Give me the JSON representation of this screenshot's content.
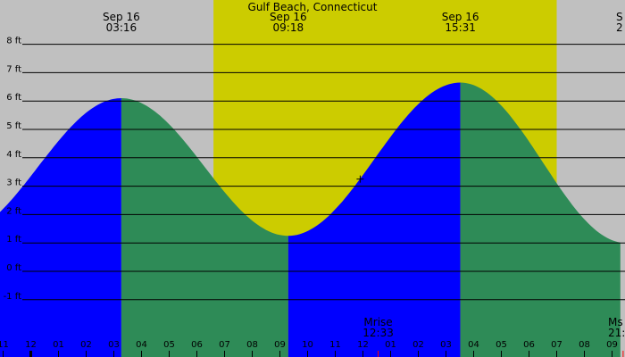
{
  "chart_data": {
    "type": "area",
    "title": "Gulf Beach, Connecticut",
    "y_unit": "ft",
    "ylim": [
      -1.5,
      8.5
    ],
    "y_ticks": [
      8,
      7,
      6,
      5,
      4,
      3,
      2,
      1,
      0,
      -1
    ],
    "y_tick_labels": [
      "8 ft",
      "7 ft",
      "6 ft",
      "5 ft",
      "4 ft",
      "3 ft",
      "2 ft",
      "1 ft",
      "0 ft",
      "-1 ft"
    ],
    "x_unit": "hour of day (Sep 16)",
    "xlim": [
      -1.3,
      21.3
    ],
    "hour_tick_labels": [
      {
        "hour": -1,
        "label": "11"
      },
      {
        "hour": 0,
        "label": "12"
      },
      {
        "hour": 1,
        "label": "01"
      },
      {
        "hour": 2,
        "label": "02"
      },
      {
        "hour": 3,
        "label": "03"
      },
      {
        "hour": 4,
        "label": "04"
      },
      {
        "hour": 5,
        "label": "05"
      },
      {
        "hour": 6,
        "label": "06"
      },
      {
        "hour": 7,
        "label": "07"
      },
      {
        "hour": 8,
        "label": "08"
      },
      {
        "hour": 9,
        "label": "09"
      },
      {
        "hour": 10,
        "label": "10"
      },
      {
        "hour": 11,
        "label": "11"
      },
      {
        "hour": 12,
        "label": "12"
      },
      {
        "hour": 13,
        "label": "01"
      },
      {
        "hour": 14,
        "label": "02"
      },
      {
        "hour": 15,
        "label": "03"
      },
      {
        "hour": 16,
        "label": "04"
      },
      {
        "hour": 17,
        "label": "05"
      },
      {
        "hour": 18,
        "label": "06"
      },
      {
        "hour": 19,
        "label": "07"
      },
      {
        "hour": 20,
        "label": "08"
      },
      {
        "hour": 21,
        "label": "09"
      }
    ],
    "daylight": {
      "start_hour": 6.6,
      "end_hour": 19.0
    },
    "tide_extremes": [
      {
        "date": "Sep 16",
        "time": "03:16",
        "hour": 3.27,
        "height": 6.1,
        "kind": "high"
      },
      {
        "date": "Sep 16",
        "time": "09:18",
        "hour": 9.3,
        "height": 1.25,
        "kind": "low"
      },
      {
        "date": "Sep 16",
        "time": "15:31",
        "hour": 15.52,
        "height": 6.65,
        "kind": "high"
      },
      {
        "date": "S",
        "time": "2",
        "hour": 21.5,
        "height": 1.0,
        "kind": "low"
      }
    ],
    "moon_events": [
      {
        "label": "Mrise",
        "time": "12:33",
        "hour": 12.55
      },
      {
        "label": "Ms",
        "time": "21:",
        "hour": 21.4
      }
    ],
    "now_marker": {
      "hour": 11.9,
      "height": 3.25
    },
    "colors": {
      "night": "#c0c0c0",
      "day": "#cccc00",
      "rising": "#0000ff",
      "falling": "#2e8b57",
      "gridline": "#000000",
      "moon_tick": "#ff0000"
    }
  }
}
